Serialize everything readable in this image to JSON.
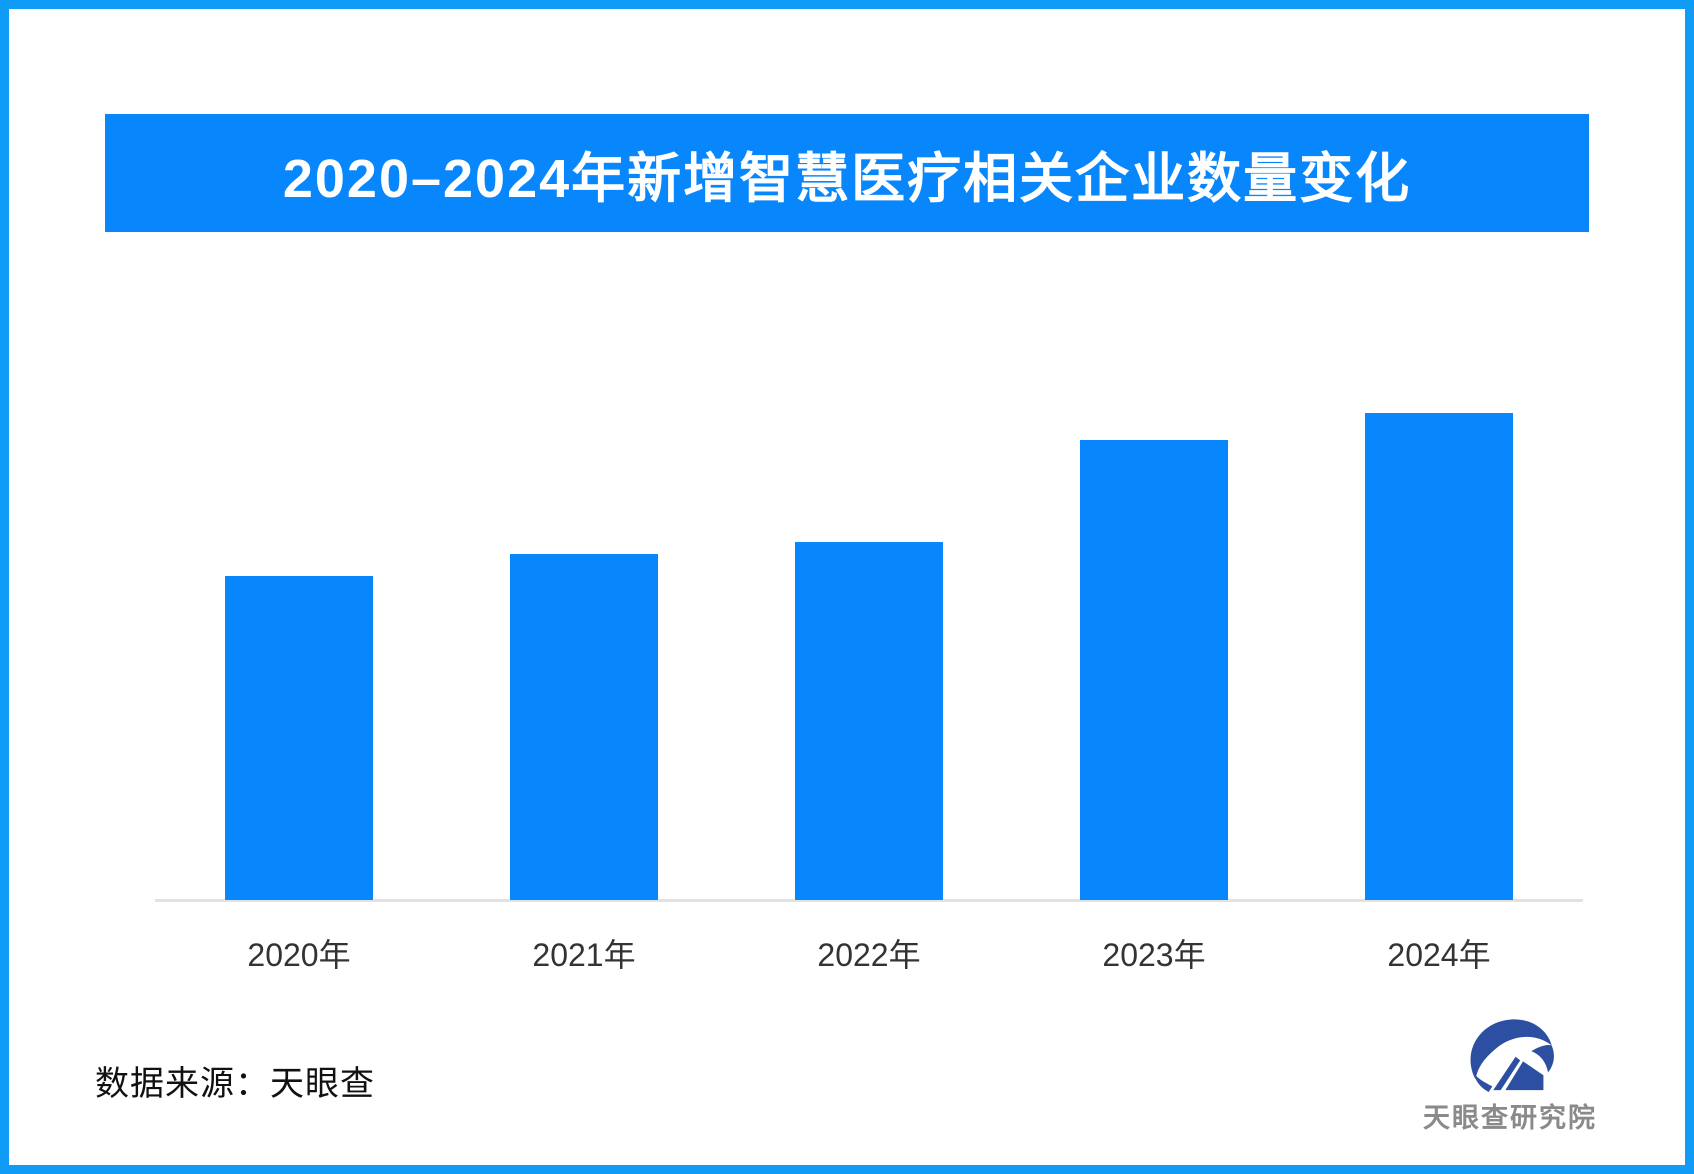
{
  "page": {
    "background": "#ffffff",
    "frame_border_color": "#0f9bf6"
  },
  "banner": {
    "title": "2020–2024年新增智慧医疗相关企业数量变化",
    "bg": "#0886fb",
    "text_color": "#ffffff"
  },
  "chart_data": {
    "type": "bar",
    "title": "2020–2024年新增智慧医疗相关企业数量变化",
    "categories": [
      "2020年",
      "2021年",
      "2022年",
      "2023年",
      "2024年"
    ],
    "values_relative": [
      0.665,
      0.71,
      0.735,
      0.944,
      1.0
    ],
    "value_labels_shown": false,
    "numeric_axis_shown": false,
    "bar_color": "#0886fb",
    "axis_line_color": "#e2e2e2",
    "xlabel": "",
    "ylabel": "",
    "grid": "off",
    "legend": "none"
  },
  "footer": {
    "source_label": "数据来源：天眼查",
    "logo_text": "天眼查研究院",
    "logo_emblem_color": "#2d4fa2",
    "logo_text_color": "#8a8a8a"
  },
  "icons": {
    "logo_emblem": "tianyancha-emblem"
  }
}
